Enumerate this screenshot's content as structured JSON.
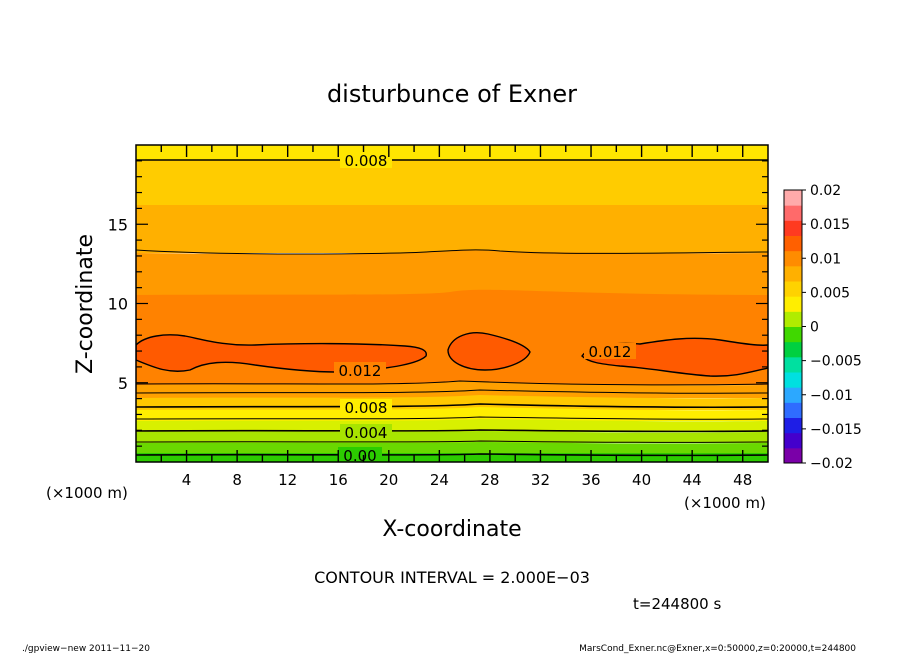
{
  "chart_data": {
    "type": "heatmap",
    "subtype": "filled-contour",
    "title": "disturbunce of Exner",
    "xlabel": "X-coordinate",
    "ylabel": "Z-coordinate",
    "x_unit_left": "(×1000 m)",
    "x_unit_right": "(×1000 m)",
    "xlim": [
      0,
      50
    ],
    "ylim": [
      0,
      20
    ],
    "x_ticks": [
      "4",
      "8",
      "12",
      "16",
      "20",
      "24",
      "28",
      "32",
      "36",
      "40",
      "44",
      "48"
    ],
    "y_ticks": [
      "5",
      "10",
      "15"
    ],
    "colorbar": {
      "ticks": [
        "0.02",
        "0.015",
        "0.01",
        "0.005",
        "0",
        "−0.005",
        "−0.01",
        "−0.015",
        "−0.02"
      ],
      "range": [
        -0.02,
        0.02
      ]
    },
    "contour_labels": [
      "0.008",
      "0.012",
      "0.012",
      "0.008",
      "0.004",
      "0.00"
    ],
    "contour_interval_text": "CONTOUR INTERVAL = 2.000E−03",
    "time_text": "t=244800 s",
    "footer_left": "./gpview−new   2011−11−20",
    "footer_right": "MarsCond_Exner.nc@Exner,x=0:50000,z=0:20000,t=244800",
    "vertical_profile": [
      {
        "z": 0.0,
        "value": 0.0
      },
      {
        "z": 0.5,
        "value": 0.001
      },
      {
        "z": 1.0,
        "value": 0.002
      },
      {
        "z": 1.5,
        "value": 0.003
      },
      {
        "z": 2.0,
        "value": 0.004
      },
      {
        "z": 2.5,
        "value": 0.005
      },
      {
        "z": 3.0,
        "value": 0.006
      },
      {
        "z": 3.5,
        "value": 0.007
      },
      {
        "z": 4.0,
        "value": 0.008
      },
      {
        "z": 5.0,
        "value": 0.01
      },
      {
        "z": 6.5,
        "value": 0.012
      },
      {
        "z": 8.5,
        "value": 0.011
      },
      {
        "z": 11.5,
        "value": 0.01
      },
      {
        "z": 14.0,
        "value": 0.009
      },
      {
        "z": 19.0,
        "value": 0.008
      }
    ]
  }
}
